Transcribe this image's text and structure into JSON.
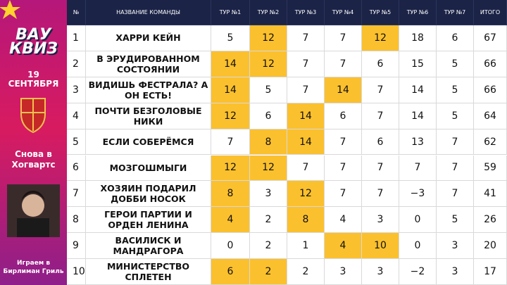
{
  "sidebar": {
    "logo": [
      "ВАУ",
      "КВИЗ"
    ],
    "date_day": "19",
    "date_month": "СЕНТЯБРЯ",
    "theme": "Снова в Хогвартс",
    "venue": "Играем в Бирлиман Гриль"
  },
  "table": {
    "header": [
      "№",
      "НАЗВАНИЕ КОМАНДЫ",
      "ТУР №1",
      "ТУР №2",
      "ТУР №3",
      "ТУР №4",
      "ТУР №5",
      "ТУР №6",
      "ТУР №7",
      "ИТОГО"
    ],
    "highlight_color": "#fbc02d",
    "rows": [
      {
        "num": 1,
        "name": [
          "ХАРРИ КЕЙН"
        ],
        "scores": [
          5,
          12,
          7,
          7,
          12,
          18,
          6
        ],
        "total": 67,
        "highlight": [
          1,
          4
        ]
      },
      {
        "num": 2,
        "name": [
          "В ЭРУДИРОВАННОМ",
          "СОСТОЯНИИ"
        ],
        "scores": [
          14,
          12,
          7,
          7,
          6,
          15,
          5
        ],
        "total": 66,
        "highlight": [
          0,
          1
        ]
      },
      {
        "num": 3,
        "name": [
          "ВИДИШЬ ФЕСТРАЛА? А",
          "ОН ЕСТЬ!"
        ],
        "scores": [
          14,
          5,
          7,
          14,
          7,
          14,
          5
        ],
        "total": 66,
        "highlight": [
          0,
          3
        ]
      },
      {
        "num": 4,
        "name": [
          "ПОЧТИ БЕЗГОЛОВЫЕ",
          "НИКИ"
        ],
        "scores": [
          12,
          6,
          14,
          6,
          7,
          14,
          5
        ],
        "total": 64,
        "highlight": [
          0,
          2
        ]
      },
      {
        "num": 5,
        "name": [
          "ЕСЛИ СОБЕРЁМСЯ"
        ],
        "scores": [
          7,
          8,
          14,
          7,
          6,
          13,
          7
        ],
        "total": 62,
        "highlight": [
          1,
          2
        ]
      },
      {
        "num": 6,
        "name": [
          "МОЗГОШМЫГИ"
        ],
        "scores": [
          12,
          12,
          7,
          7,
          7,
          7,
          7
        ],
        "total": 59,
        "highlight": [
          0,
          1
        ]
      },
      {
        "num": 7,
        "name": [
          "ХОЗЯИН ПОДАРИЛ",
          "ДОББИ НОСОК"
        ],
        "scores": [
          8,
          3,
          12,
          7,
          7,
          "−3",
          7
        ],
        "total": 41,
        "highlight": [
          0,
          2
        ]
      },
      {
        "num": 8,
        "name": [
          "ГЕРОИ ПАРТИИ И",
          "ОРДЕН ЛЕНИНА"
        ],
        "scores": [
          4,
          2,
          8,
          4,
          3,
          0,
          5
        ],
        "total": 26,
        "highlight": [
          0,
          2
        ]
      },
      {
        "num": 9,
        "name": [
          "ВАСИЛИСК И",
          "МАНДРАГОРА"
        ],
        "scores": [
          0,
          2,
          1,
          4,
          10,
          0,
          3
        ],
        "total": 20,
        "highlight": [
          3,
          4
        ]
      },
      {
        "num": 10,
        "name": [
          "МИНИСТЕРСТВО",
          "СПЛЕТЕН"
        ],
        "scores": [
          6,
          2,
          2,
          3,
          3,
          "−2",
          3
        ],
        "total": 17,
        "highlight": [
          0,
          1
        ]
      }
    ]
  }
}
